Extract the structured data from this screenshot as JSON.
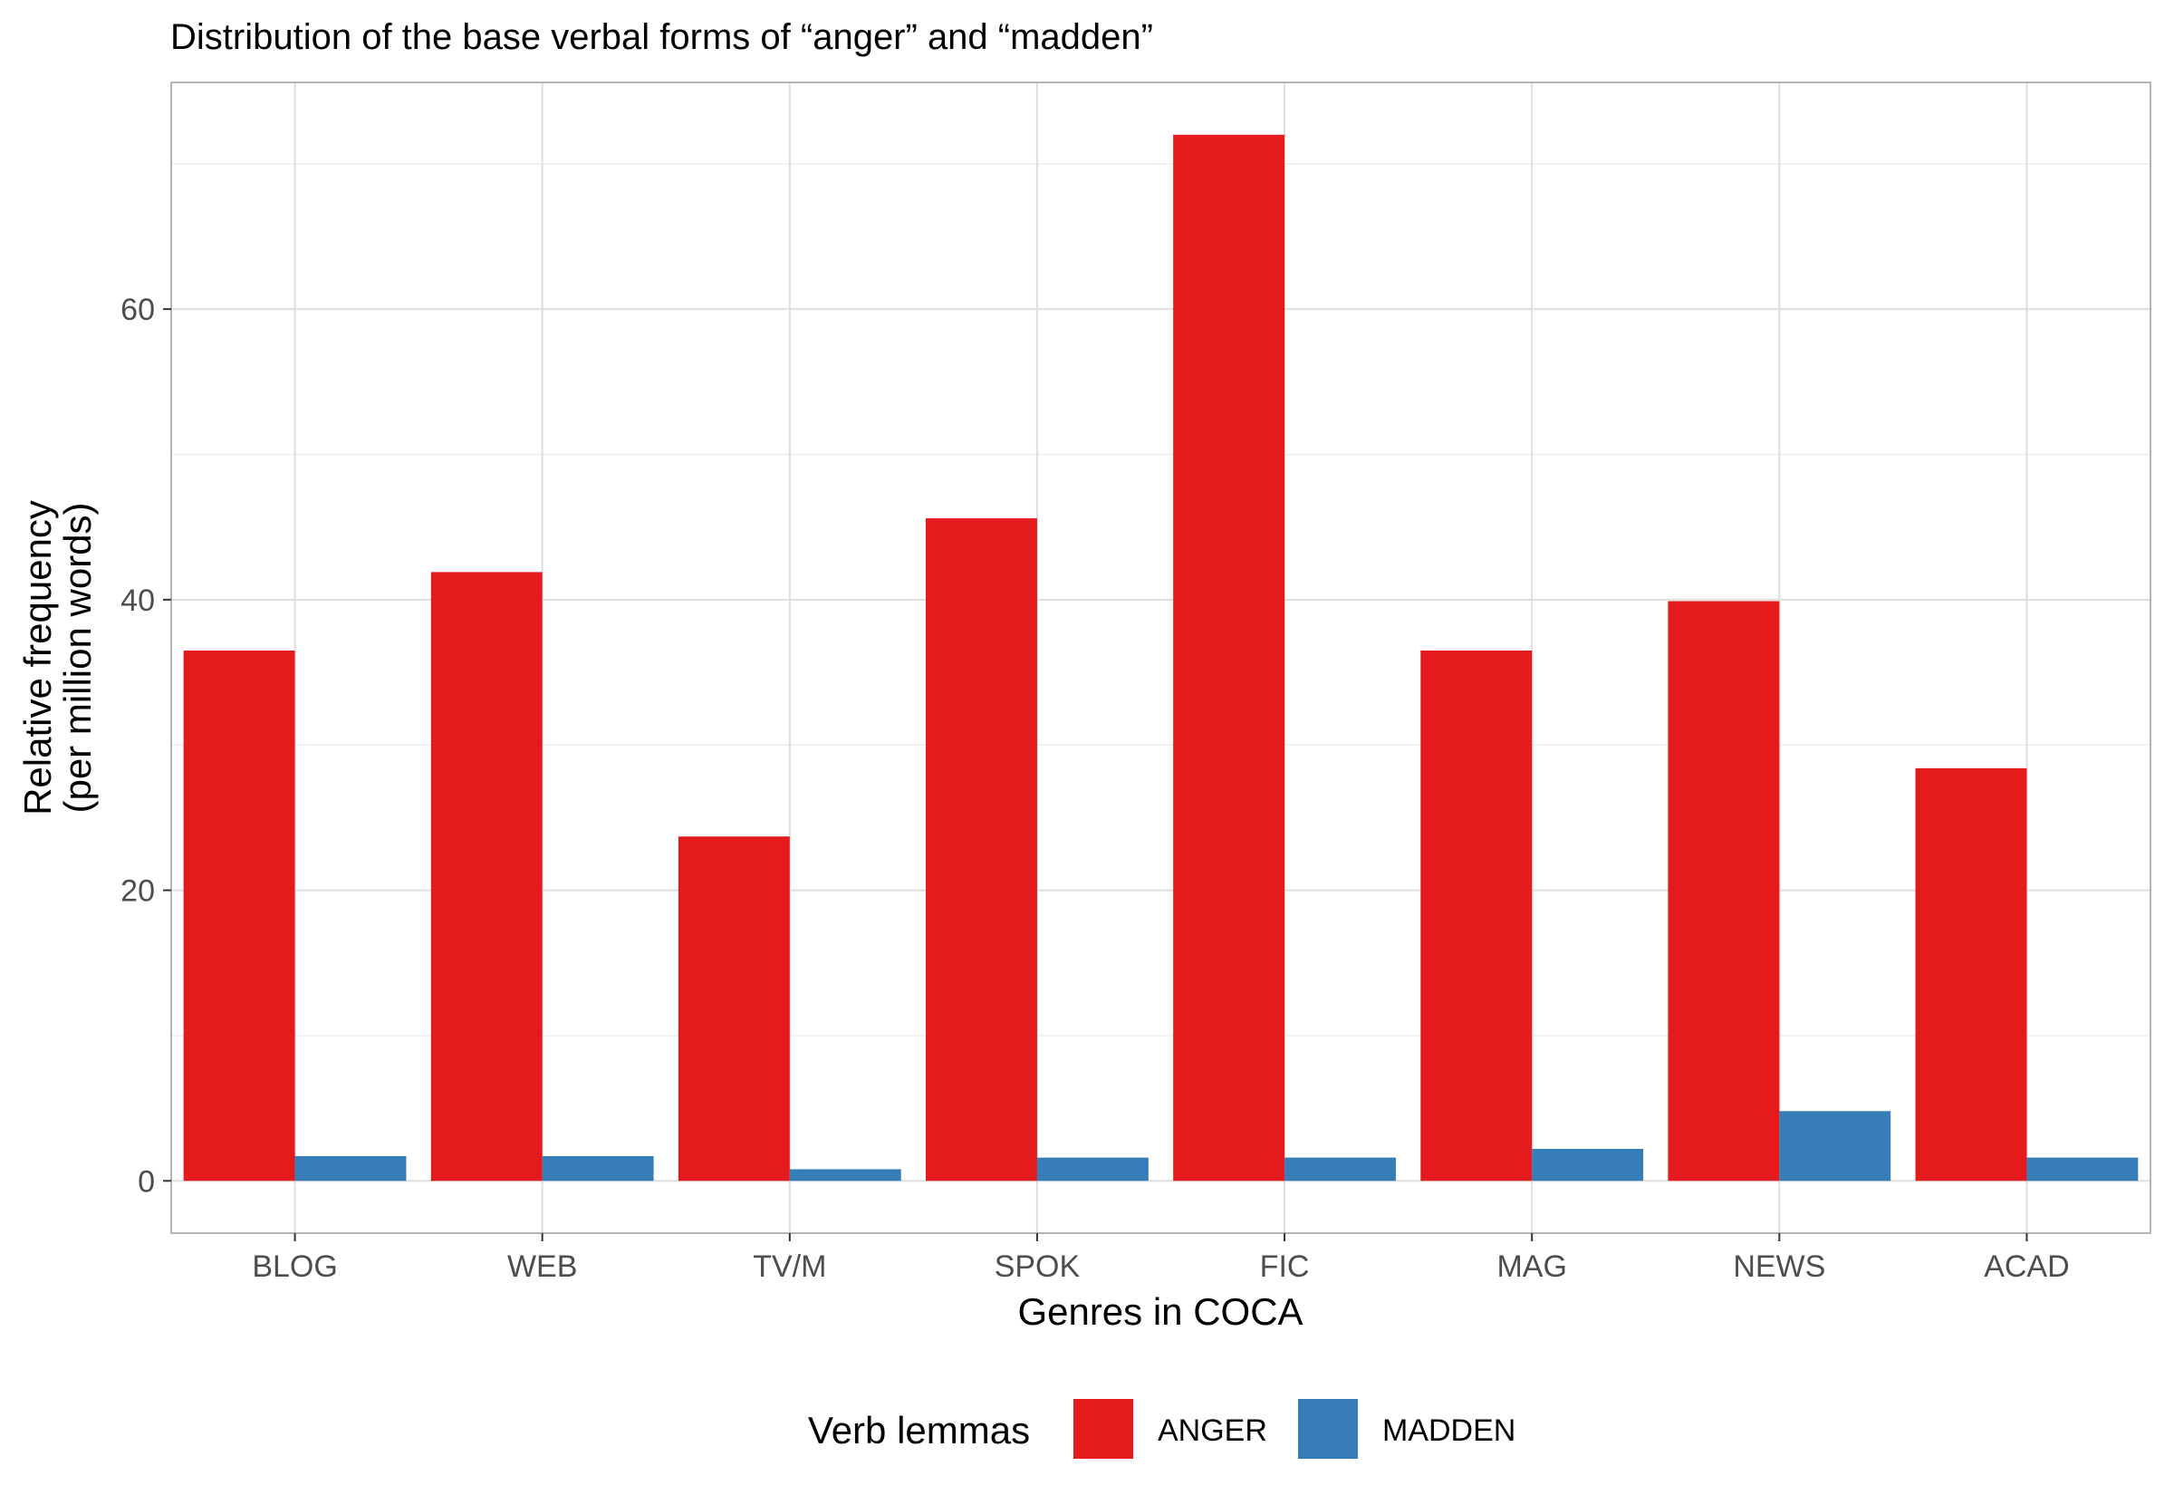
{
  "chart_data": {
    "type": "bar",
    "title": "Distribution of the base verbal forms of “anger” and “madden”",
    "xlabel": "Genres in COCA",
    "ylabel_line1": "Relative frequency",
    "ylabel_line2": "(per million words)",
    "categories": [
      "BLOG",
      "WEB",
      "TV/M",
      "SPOK",
      "FIC",
      "MAG",
      "NEWS",
      "ACAD"
    ],
    "series": [
      {
        "name": "ANGER",
        "color": "#E41A1C",
        "values": [
          36.5,
          41.9,
          23.7,
          45.6,
          72.0,
          36.5,
          39.9,
          28.4
        ]
      },
      {
        "name": "MADDEN",
        "color": "#377EB8",
        "values": [
          1.7,
          1.7,
          0.8,
          1.6,
          1.6,
          2.2,
          4.8,
          1.6
        ]
      }
    ],
    "ylim": [
      -3.6,
      75.6
    ],
    "y_ticks": [
      0,
      20,
      40,
      60
    ],
    "y_minor_ticks": [
      10,
      30,
      50,
      70
    ],
    "grid": true,
    "legend": {
      "title": "Verb lemmas",
      "position": "bottom"
    }
  }
}
